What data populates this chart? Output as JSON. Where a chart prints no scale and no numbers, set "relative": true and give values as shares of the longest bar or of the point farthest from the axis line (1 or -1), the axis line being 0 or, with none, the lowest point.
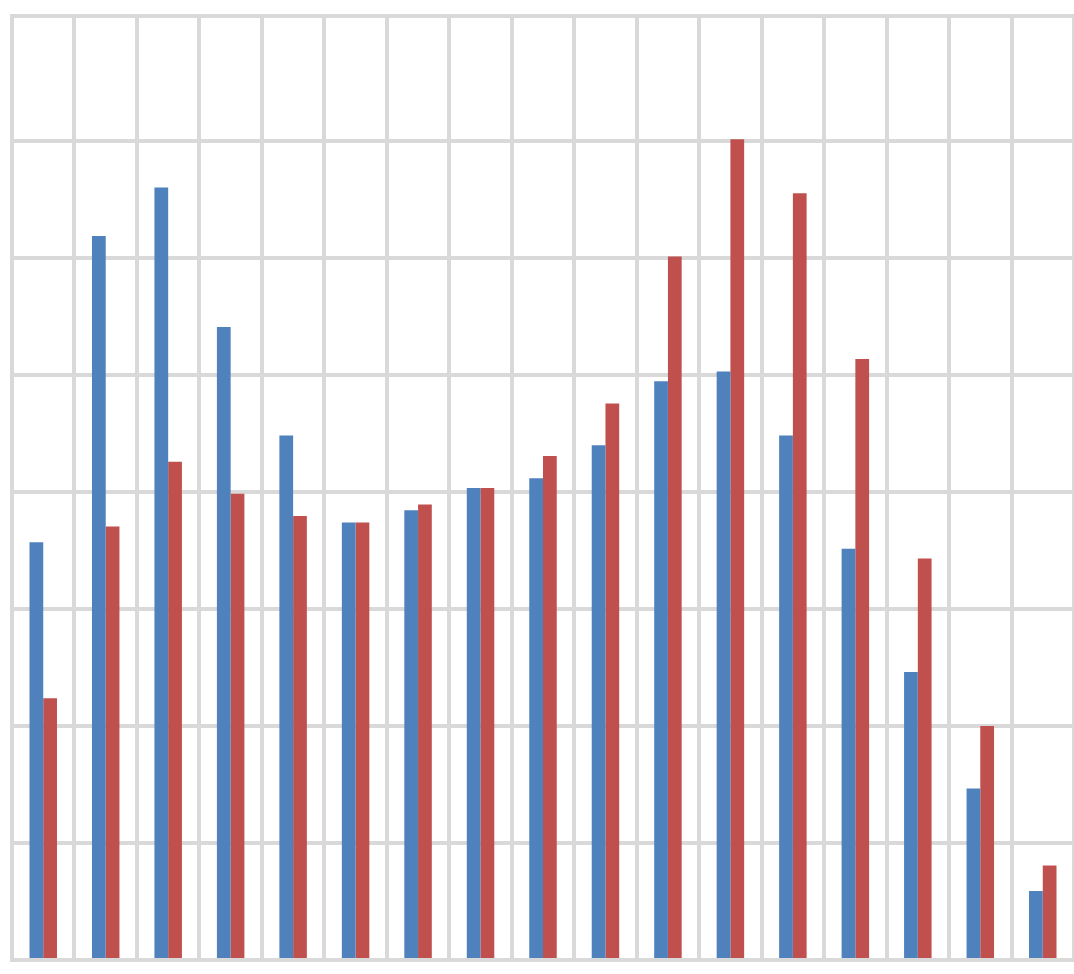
{
  "chart_data": {
    "type": "bar",
    "relative": true,
    "grid": true,
    "legend": false,
    "categories": [
      null,
      null,
      null,
      null,
      null,
      null,
      null,
      null,
      null,
      null,
      null,
      null,
      null,
      null,
      null,
      null,
      null
    ],
    "series": [
      {
        "color": "#4f81bd",
        "values": [
          0.509,
          0.882,
          0.941,
          0.771,
          0.639,
          0.533,
          0.548,
          0.575,
          0.587,
          0.627,
          0.705,
          0.717,
          0.639,
          0.501,
          0.351,
          0.209,
          0.084
        ]
      },
      {
        "color": "#c0504d",
        "values": [
          0.319,
          0.528,
          0.607,
          0.568,
          0.541,
          0.533,
          0.555,
          0.575,
          0.614,
          0.678,
          0.857,
          1,
          0.934,
          0.732,
          0.489,
          0.285,
          0.115
        ]
      }
    ]
  }
}
